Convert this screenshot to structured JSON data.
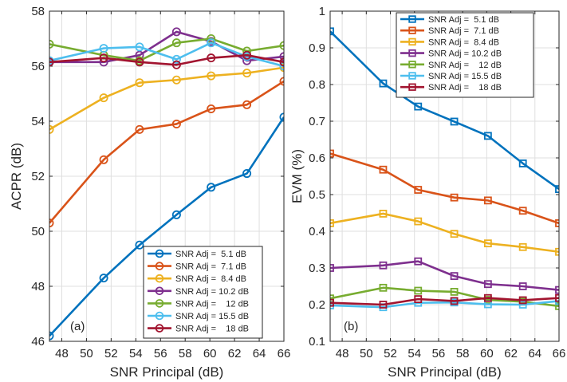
{
  "chart_data": [
    {
      "type": "line",
      "panel_tag": "(a)",
      "xlabel": "SNR Principal (dB)",
      "ylabel": "ACPR (dB)",
      "xlim": [
        47,
        66
      ],
      "ylim": [
        46,
        58
      ],
      "xticks": [
        "48",
        "50",
        "52",
        "54",
        "56",
        "58",
        "60",
        "62",
        "64",
        "66"
      ],
      "yticks": [
        "46",
        "48",
        "50",
        "52",
        "54",
        "56",
        "58"
      ],
      "grid": true,
      "legend_position": "bottom-right",
      "marker": "circle",
      "series": [
        {
          "name": "SNR Adj =  5.1 dB",
          "color": "#0072BD",
          "x": [
            47,
            51.4,
            54.3,
            57.3,
            60.1,
            63.0,
            66.0
          ],
          "y": [
            46.2,
            48.3,
            49.5,
            50.6,
            51.6,
            52.1,
            54.15
          ]
        },
        {
          "name": "SNR Adj =  7.1 dB",
          "color": "#D95319",
          "x": [
            47,
            51.4,
            54.3,
            57.3,
            60.1,
            63.0,
            66.0
          ],
          "y": [
            50.3,
            52.6,
            53.7,
            53.9,
            54.45,
            54.6,
            55.45
          ]
        },
        {
          "name": "SNR Adj =  8.4 dB",
          "color": "#EDB120",
          "x": [
            47,
            51.4,
            54.3,
            57.3,
            60.1,
            63.0,
            66.0
          ],
          "y": [
            53.7,
            54.85,
            55.4,
            55.5,
            55.65,
            55.75,
            55.95
          ]
        },
        {
          "name": "SNR Adj = 10.2 dB",
          "color": "#7E2F8E",
          "x": [
            47,
            51.4,
            54.3,
            57.3,
            60.1,
            63.0,
            66.0
          ],
          "y": [
            56.15,
            56.15,
            56.4,
            57.25,
            56.9,
            56.2,
            56.35
          ]
        },
        {
          "name": "SNR Adj =    12 dB",
          "color": "#77AC30",
          "x": [
            47,
            51.4,
            54.3,
            57.3,
            60.1,
            63.0,
            66.0
          ],
          "y": [
            56.8,
            56.4,
            56.2,
            56.85,
            57.0,
            56.55,
            56.75
          ]
        },
        {
          "name": "SNR Adj = 15.5 dB",
          "color": "#4DBEEE",
          "x": [
            47,
            51.4,
            54.3,
            57.3,
            60.1,
            63.0,
            66.0
          ],
          "y": [
            56.2,
            56.65,
            56.7,
            56.25,
            56.85,
            56.35,
            56.0
          ]
        },
        {
          "name": "SNR Adj =    18 dB",
          "color": "#A2142F",
          "x": [
            47,
            51.4,
            54.3,
            57.3,
            60.1,
            63.0,
            66.0
          ],
          "y": [
            56.15,
            56.3,
            56.15,
            56.05,
            56.3,
            56.4,
            56.15
          ]
        }
      ]
    },
    {
      "type": "line",
      "panel_tag": "(b)",
      "xlabel": "SNR Principal (dB)",
      "ylabel": "EVM (%)",
      "xlim": [
        47,
        66
      ],
      "ylim": [
        0.1,
        1
      ],
      "xticks": [
        "48",
        "50",
        "52",
        "54",
        "56",
        "58",
        "60",
        "62",
        "64",
        "66"
      ],
      "yticks": [
        "0.1",
        "0.2",
        "0.3",
        "0.4",
        "0.5",
        "0.6",
        "0.7",
        "0.8",
        "0.9",
        "1"
      ],
      "grid": true,
      "legend_position": "top-right",
      "marker": "square",
      "series": [
        {
          "name": "SNR Adj =  5.1 dB",
          "color": "#0072BD",
          "x": [
            47,
            51.4,
            54.3,
            57.3,
            60.1,
            63.0,
            66.0
          ],
          "y": [
            0.945,
            0.803,
            0.74,
            0.699,
            0.66,
            0.585,
            0.515
          ]
        },
        {
          "name": "SNR Adj =  7.1 dB",
          "color": "#D95319",
          "x": [
            47,
            51.4,
            54.3,
            57.3,
            60.1,
            63.0,
            66.0
          ],
          "y": [
            0.612,
            0.568,
            0.513,
            0.492,
            0.484,
            0.456,
            0.422
          ]
        },
        {
          "name": "SNR Adj =  8.4 dB",
          "color": "#EDB120",
          "x": [
            47,
            51.4,
            54.3,
            57.3,
            60.1,
            63.0,
            66.0
          ],
          "y": [
            0.422,
            0.448,
            0.427,
            0.393,
            0.367,
            0.357,
            0.344
          ]
        },
        {
          "name": "SNR Adj = 10.2 dB",
          "color": "#7E2F8E",
          "x": [
            47,
            51.4,
            54.3,
            57.3,
            60.1,
            63.0,
            66.0
          ],
          "y": [
            0.3,
            0.307,
            0.318,
            0.278,
            0.256,
            0.25,
            0.24
          ]
        },
        {
          "name": "SNR Adj =    12 dB",
          "color": "#77AC30",
          "x": [
            47,
            51.4,
            54.3,
            57.3,
            60.1,
            63.0,
            66.0
          ],
          "y": [
            0.217,
            0.246,
            0.238,
            0.235,
            0.213,
            0.208,
            0.196
          ]
        },
        {
          "name": "SNR Adj = 15.5 dB",
          "color": "#4DBEEE",
          "x": [
            47,
            51.4,
            54.3,
            57.3,
            60.1,
            63.0,
            66.0
          ],
          "y": [
            0.198,
            0.193,
            0.205,
            0.206,
            0.201,
            0.2,
            0.21
          ]
        },
        {
          "name": "SNR Adj =    18 dB",
          "color": "#A2142F",
          "x": [
            47,
            51.4,
            54.3,
            57.3,
            60.1,
            63.0,
            66.0
          ],
          "y": [
            0.205,
            0.2,
            0.215,
            0.21,
            0.218,
            0.212,
            0.218
          ]
        }
      ]
    }
  ]
}
